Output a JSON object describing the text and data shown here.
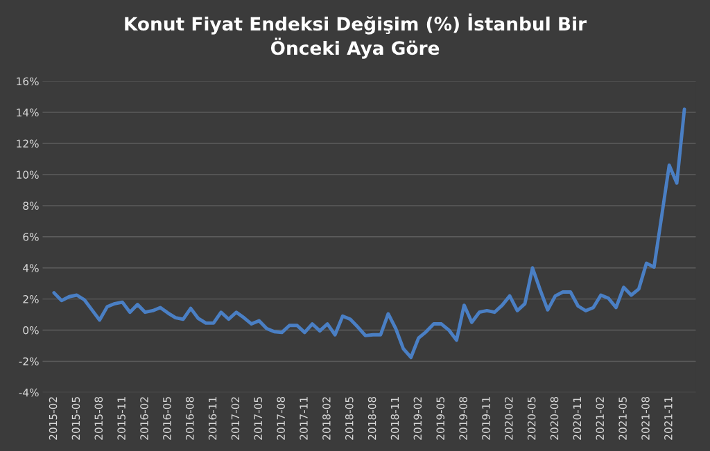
{
  "chart_data": {
    "type": "line",
    "title": "Konut Fiyat Endeksi Değişim (%) İstanbul Bir\nÖnceki Aya Göre",
    "categories": [
      "2015-02",
      null,
      null,
      "2015-05",
      null,
      null,
      "2015-08",
      null,
      null,
      "2015-11",
      null,
      null,
      "2016-02",
      null,
      null,
      "2016-05",
      null,
      null,
      "2016-08",
      null,
      null,
      "2016-11",
      null,
      null,
      "2017-02",
      null,
      null,
      "2017-05",
      null,
      null,
      "2017-08",
      null,
      null,
      "2017-11",
      null,
      null,
      "2018-02",
      null,
      null,
      "2018-05",
      null,
      null,
      "2018-08",
      null,
      null,
      "2018-11",
      null,
      null,
      "2019-02",
      null,
      null,
      "2019-05",
      null,
      null,
      "2019-08",
      null,
      null,
      "2019-11",
      null,
      null,
      "2020-02",
      null,
      null,
      "2020-05",
      null,
      null,
      "2020-08",
      null,
      null,
      "2020-11",
      null,
      null,
      "2021-02",
      null,
      null,
      "2021-05",
      null,
      null,
      "2021-08",
      null,
      null,
      "2021-11",
      null,
      null
    ],
    "series": [
      {
        "color": "#4a7fc4",
        "values": [
          2.4,
          1.9,
          2.15,
          2.25,
          1.95,
          1.3,
          0.65,
          1.5,
          1.7,
          1.8,
          1.15,
          1.65,
          1.15,
          1.25,
          1.45,
          1.1,
          0.8,
          0.7,
          1.4,
          0.75,
          0.45,
          0.45,
          1.15,
          0.7,
          1.15,
          0.8,
          0.4,
          0.6,
          0.1,
          -0.1,
          -0.15,
          0.3,
          0.3,
          -0.15,
          0.4,
          -0.05,
          0.4,
          -0.3,
          0.9,
          0.7,
          0.2,
          -0.35,
          -0.3,
          -0.3,
          1.05,
          0.1,
          -1.2,
          -1.75,
          -0.5,
          -0.1,
          0.4,
          0.4,
          0.0,
          -0.65,
          1.6,
          0.5,
          1.15,
          1.25,
          1.15,
          1.6,
          2.2,
          1.25,
          1.7,
          4.0,
          2.6,
          1.3,
          2.2,
          2.45,
          2.45,
          1.55,
          1.25,
          1.45,
          2.25,
          2.05,
          1.45,
          2.75,
          2.25,
          2.65,
          4.3,
          4.05,
          7.3,
          10.6,
          9.45,
          14.2
        ]
      }
    ],
    "ylim": [
      -4,
      16
    ],
    "yticks": [
      {
        "value": -4,
        "label": "-4%"
      },
      {
        "value": -2,
        "label": "-2%"
      },
      {
        "value": 0,
        "label": "0%"
      },
      {
        "value": 2,
        "label": "2%"
      },
      {
        "value": 4,
        "label": "4%"
      },
      {
        "value": 6,
        "label": "6%"
      },
      {
        "value": 8,
        "label": "8%"
      },
      {
        "value": 10,
        "label": "10%"
      },
      {
        "value": 12,
        "label": "12%"
      },
      {
        "value": 14,
        "label": "14%"
      },
      {
        "value": 16,
        "label": "16%"
      }
    ],
    "grid": "y",
    "marker": "none",
    "line_style": "solid"
  }
}
